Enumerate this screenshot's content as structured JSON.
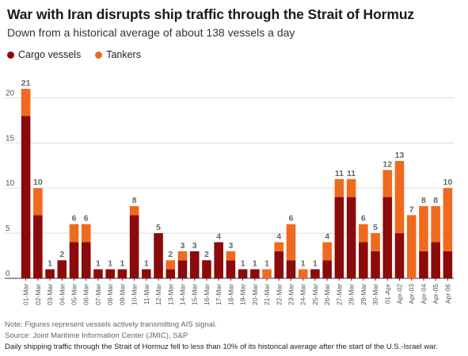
{
  "title": "War with Iran disrupts ship traffic through the Strait of Hormuz",
  "subtitle": "Down from a historical average of about 138 vessels a day",
  "note": "Note: Figures represent vessels actively transmitting AIS signal.",
  "source": "Source: Joint Maritime Information Center (JMIC), S&P",
  "caption": "Daily shipping traffic through the Strait of Hormuz fell to less than 10% of its historical average after the start of the U.S.-Israel war.",
  "colors": {
    "cargo": "#8b0a0a",
    "tankers": "#ef6a1f",
    "total_label": "#666666",
    "axis_text": "#555555",
    "grid": "#dddddd"
  },
  "chart_data": {
    "type": "bar",
    "stacked": true,
    "categories": [
      "01-Mar",
      "02-Mar",
      "03-Mar",
      "04-Mar",
      "05-Mar",
      "06-Mar",
      "07-Mar",
      "08-Mar",
      "09-Mar",
      "10-Mar",
      "11-Mar",
      "12-Mar",
      "13-Mar",
      "14-Mar",
      "15-Mar",
      "16-Mar",
      "17-Mar",
      "18-Mar",
      "19-Mar",
      "20-Mar",
      "21-Mar",
      "22-Mar",
      "23-Mar",
      "24-Mar",
      "25-Mar",
      "26-Mar",
      "27-Mar",
      "28-Mar",
      "29-Mar",
      "30-Mar",
      "01-Apr",
      "Apr-02",
      "Apr-03",
      "Apr-04",
      "Apr-05",
      "Apr 06"
    ],
    "series": [
      {
        "name": "Cargo vessels",
        "values": [
          18,
          7,
          1,
          2,
          4,
          4,
          1,
          1,
          1,
          7,
          1,
          5,
          1,
          2,
          3,
          2,
          4,
          2,
          1,
          1,
          0,
          3,
          2,
          0,
          1,
          2,
          9,
          9,
          4,
          3,
          9,
          5,
          0,
          3,
          4,
          3
        ]
      },
      {
        "name": "Tankers",
        "values": [
          3,
          3,
          0,
          0,
          2,
          2,
          0,
          0,
          0,
          1,
          0,
          0,
          1,
          1,
          0,
          0,
          0,
          1,
          0,
          0,
          1,
          1,
          4,
          1,
          0,
          2,
          2,
          2,
          2,
          2,
          3,
          8,
          7,
          5,
          4,
          7
        ]
      }
    ],
    "totals": [
      21,
      10,
      1,
      2,
      6,
      6,
      1,
      1,
      1,
      8,
      1,
      5,
      2,
      3,
      3,
      2,
      4,
      3,
      1,
      1,
      1,
      4,
      6,
      1,
      1,
      4,
      11,
      11,
      6,
      5,
      12,
      13,
      7,
      8,
      8,
      10
    ],
    "ylim": [
      0,
      22
    ],
    "yticks": [
      0,
      5,
      10,
      15,
      20
    ],
    "grid": true,
    "legend_position": "top-left"
  }
}
